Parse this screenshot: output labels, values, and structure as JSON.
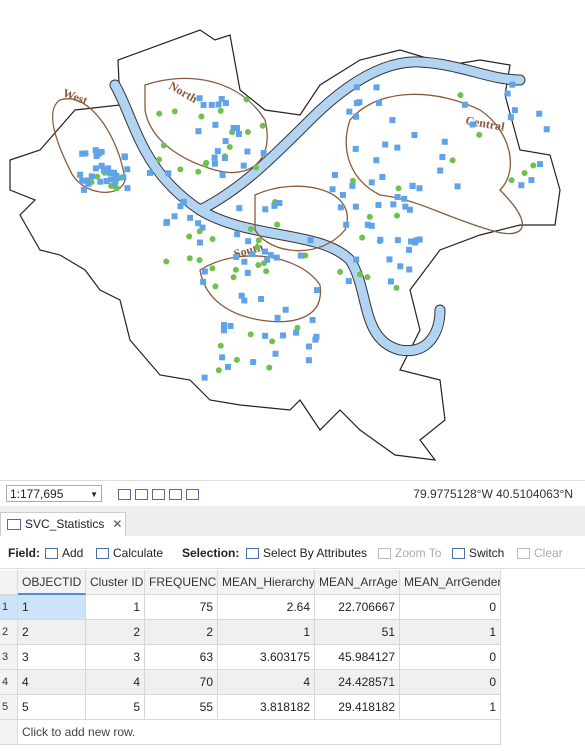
{
  "map": {
    "labels": [
      "West",
      "North",
      "Central",
      "South"
    ]
  },
  "status_bar": {
    "scale": "1:177,695",
    "coordinates": "79.9775128°W 40.5104063°N"
  },
  "tab": {
    "title": "SVC_Statistics"
  },
  "toolbar": {
    "field_label": "Field:",
    "add": "Add",
    "calculate": "Calculate",
    "selection_label": "Selection:",
    "select_by_attributes": "Select By Attributes",
    "zoom_to": "Zoom To",
    "switch": "Switch",
    "clear": "Clear"
  },
  "table": {
    "columns": [
      "OBJECTID *",
      "Cluster ID",
      "FREQUENCY",
      "MEAN_Hierarchy",
      "MEAN_ArrAge",
      "MEAN_ArrGender"
    ],
    "row_numbers": [
      1,
      2,
      3,
      4,
      5
    ],
    "rows": [
      [
        1,
        1,
        75,
        2.64,
        22.706667,
        0
      ],
      [
        2,
        2,
        2,
        1,
        51,
        1
      ],
      [
        3,
        3,
        63,
        3.603175,
        45.984127,
        0
      ],
      [
        4,
        4,
        70,
        4,
        24.428571,
        0
      ],
      [
        5,
        5,
        55,
        3.818182,
        29.418182,
        1
      ]
    ],
    "footer": "Click to add new row."
  }
}
